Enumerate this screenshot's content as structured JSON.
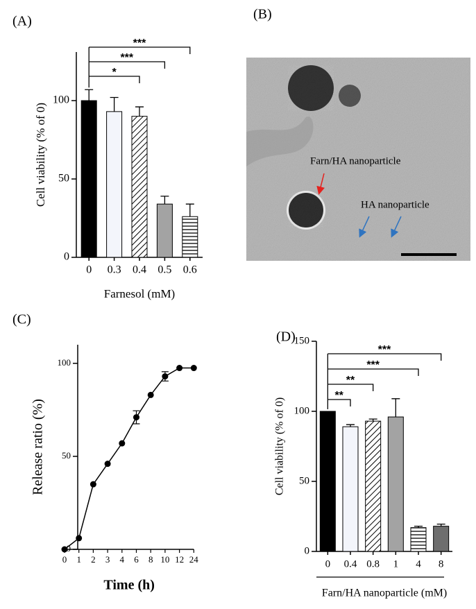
{
  "chart_data": [
    {
      "type": "bar",
      "label": "(A)",
      "categories": [
        "0",
        "0.3",
        "0.4",
        "0.5",
        "0.6"
      ],
      "values": [
        100,
        93,
        90,
        34,
        26
      ],
      "errors": [
        7,
        9,
        6,
        5,
        8
      ],
      "colors": [
        "#000000",
        "#f3f5fb",
        "#ffffff",
        "#a3a3a3",
        "#ffffff"
      ],
      "patterns": [
        null,
        null,
        "diagonal",
        null,
        "horizontal"
      ],
      "significance": [
        null,
        null,
        "*",
        "***",
        "***"
      ],
      "ylim": [
        0,
        131
      ],
      "yticks": [
        0,
        50,
        100
      ],
      "xlabel": "Farnesol (mM)",
      "ylabel": "Cell viability (% of 0)"
    },
    {
      "type": "line",
      "label": "(C)",
      "categories": [
        "0",
        "1",
        "2",
        "3",
        "4",
        "6",
        "8",
        "10",
        "12",
        "24"
      ],
      "values": [
        0,
        6,
        35,
        46,
        57,
        71,
        83,
        93,
        97.5,
        97.5
      ],
      "errors": [
        null,
        null,
        null,
        null,
        null,
        3.5,
        null,
        2.5,
        null,
        null
      ],
      "color": "#000000",
      "ylim": [
        0,
        110
      ],
      "yticks": [
        0,
        50,
        100
      ],
      "xlabel": "Time (h)",
      "ylabel": "Release ratio (%)"
    },
    {
      "type": "bar",
      "label": "(D)",
      "categories": [
        "0",
        "0.4",
        "0.8",
        "1",
        "4",
        "8"
      ],
      "values": [
        100,
        89,
        93,
        96,
        17,
        18
      ],
      "errors": [
        null,
        1.5,
        1.5,
        13,
        1,
        1.5
      ],
      "colors": [
        "#000000",
        "#f3f5fb",
        "#ffffff",
        "#a3a3a3",
        "#ffffff",
        "#6e6e6e"
      ],
      "patterns": [
        null,
        null,
        "diagonal",
        null,
        "horizontal",
        null
      ],
      "significance": [
        null,
        "**",
        "**",
        null,
        "***",
        "***"
      ],
      "ylim": [
        0,
        150
      ],
      "yticks": [
        0,
        50,
        100,
        150
      ],
      "xlabel": "Farn/HA nanoparticle (mM)",
      "ylabel": "Cell viability (% of 0)"
    }
  ],
  "image": {
    "label": "(B)",
    "annotations": [
      {
        "text": "Farn/HA nanoparticle",
        "color": "#e5211d"
      },
      {
        "text": "HA nanoparticle",
        "color": "#2f74c0"
      }
    ]
  }
}
